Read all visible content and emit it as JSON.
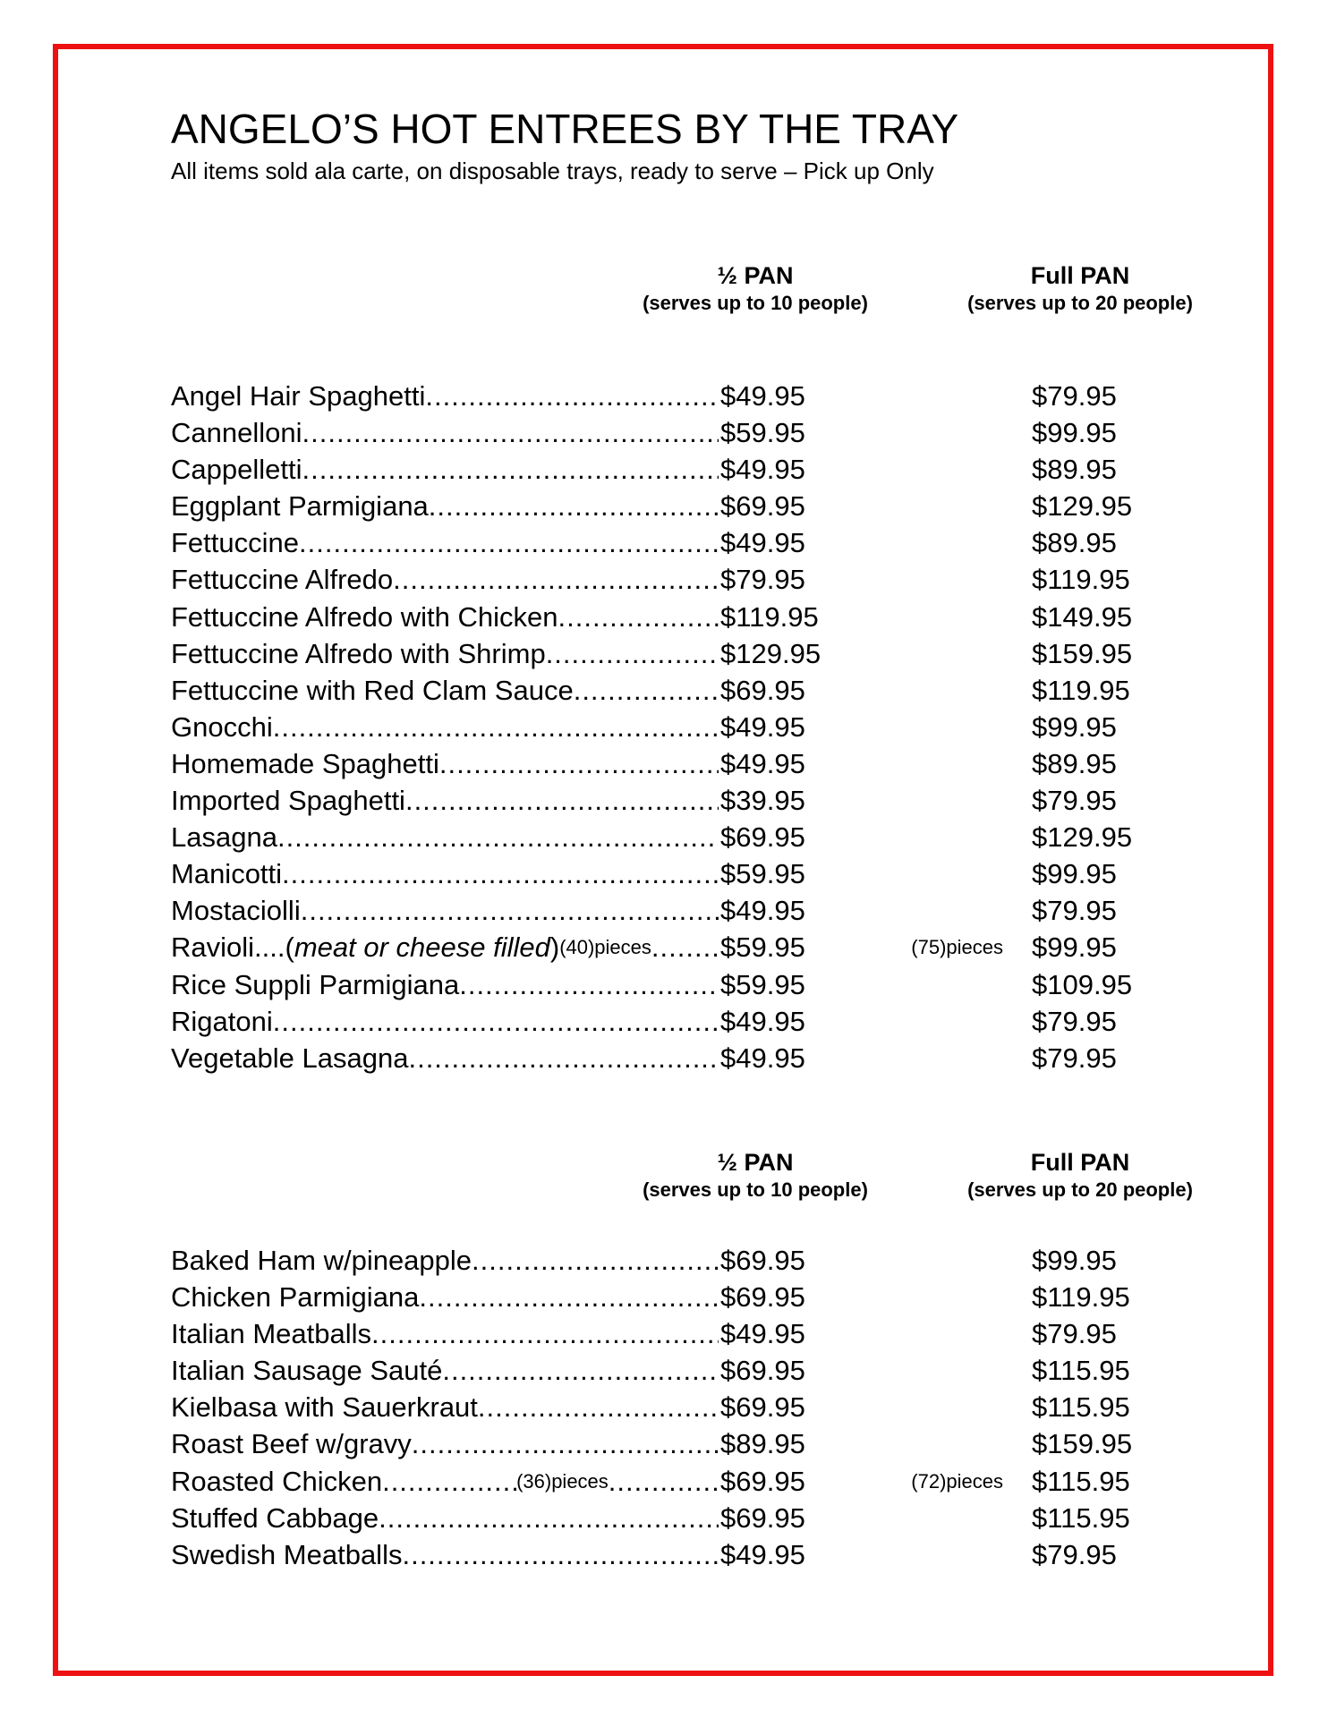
{
  "title": "ANGELO’S HOT ENTREES BY THE TRAY",
  "subtitle": "All items sold ala carte, on disposable trays, ready to serve – Pick up Only",
  "colors": {
    "border": "#ee1111"
  },
  "sections": [
    {
      "half_header": "½ PAN",
      "half_sub": "(serves up to 10 people)",
      "full_header": "Full PAN",
      "full_sub": "(serves up to 20 people)",
      "items": [
        {
          "name": "Angel Hair Spaghetti",
          "half": "$49.95",
          "full": "$79.95"
        },
        {
          "name": "Cannelloni",
          "half": "$59.95",
          "full": "$99.95"
        },
        {
          "name": "Cappelletti",
          "half": "$49.95",
          "full": "$89.95"
        },
        {
          "name": "Eggplant Parmigiana",
          "half": "$69.95",
          "full": "$129.95"
        },
        {
          "name": "Fettuccine",
          "half": "$49.95",
          "full": "$89.95"
        },
        {
          "name": "Fettuccine Alfredo",
          "half": "$79.95",
          "full": "$119.95"
        },
        {
          "name": "Fettuccine Alfredo with Chicken",
          "half": "$119.95",
          "full": "$149.95"
        },
        {
          "name": "Fettuccine Alfredo with Shrimp",
          "half": "$129.95",
          "full": "$159.95"
        },
        {
          "name": "Fettuccine with Red Clam Sauce",
          "half": "$69.95",
          "full": "$119.95"
        },
        {
          "name": "Gnocchi",
          "half": "$49.95",
          "full": "$99.95"
        },
        {
          "name": "Homemade Spaghetti",
          "half": "$49.95",
          "full": "$89.95"
        },
        {
          "name": "Imported Spaghetti",
          "half": "$39.95",
          "full": "$79.95"
        },
        {
          "name": "Lasagna",
          "half": "$69.95",
          "full": "$129.95"
        },
        {
          "name": "Manicotti",
          "half": "$59.95",
          "full": "$99.95"
        },
        {
          "name": "Mostaciolli",
          "half": "$49.95",
          "full": "$79.95"
        },
        {
          "name": "Ravioli....(",
          "note": "meat or cheese filled",
          "after": ")",
          "half_pieces": " (40)pieces",
          "half": "$59.95",
          "full_pieces": "(75)pieces",
          "full": "$99.95"
        },
        {
          "name": "Rice Suppli Parmigiana",
          "half": "$59.95",
          "full": "$109.95"
        },
        {
          "name": "Rigatoni",
          "half": "$49.95",
          "full": "$79.95"
        },
        {
          "name": "Vegetable Lasagna",
          "half": "$49.95",
          "full": "$79.95"
        }
      ]
    },
    {
      "half_header": "½ PAN",
      "half_sub": "(serves up to 10 people)",
      "full_header": "Full PAN",
      "full_sub": "(serves up to 20 people)",
      "items": [
        {
          "name": "Baked Ham w/pineapple",
          "half": "$69.95",
          "full": "$99.95"
        },
        {
          "name": "Chicken Parmigiana",
          "half": "$69.95",
          "full": "$119.95"
        },
        {
          "name": "Italian Meatballs",
          "half": "$49.95",
          "full": "$79.95"
        },
        {
          "name": "Italian Sausage Sauté",
          "half": "$69.95",
          "full": "$115.95"
        },
        {
          "name": "Kielbasa with Sauerkraut",
          "half": "$69.95",
          "full": "$115.95"
        },
        {
          "name": "Roast Beef w/gravy",
          "half": "$89.95",
          "full": "$159.95"
        },
        {
          "name": "Roasted Chicken",
          "half_pieces": "(36)pieces",
          "half": "$69.95",
          "full_pieces": "(72)pieces",
          "full": "$115.95"
        },
        {
          "name": "Stuffed Cabbage",
          "half": "$69.95",
          "full": "$115.95"
        },
        {
          "name": "Swedish Meatballs",
          "half": "$49.95",
          "full": "$79.95"
        }
      ]
    }
  ]
}
